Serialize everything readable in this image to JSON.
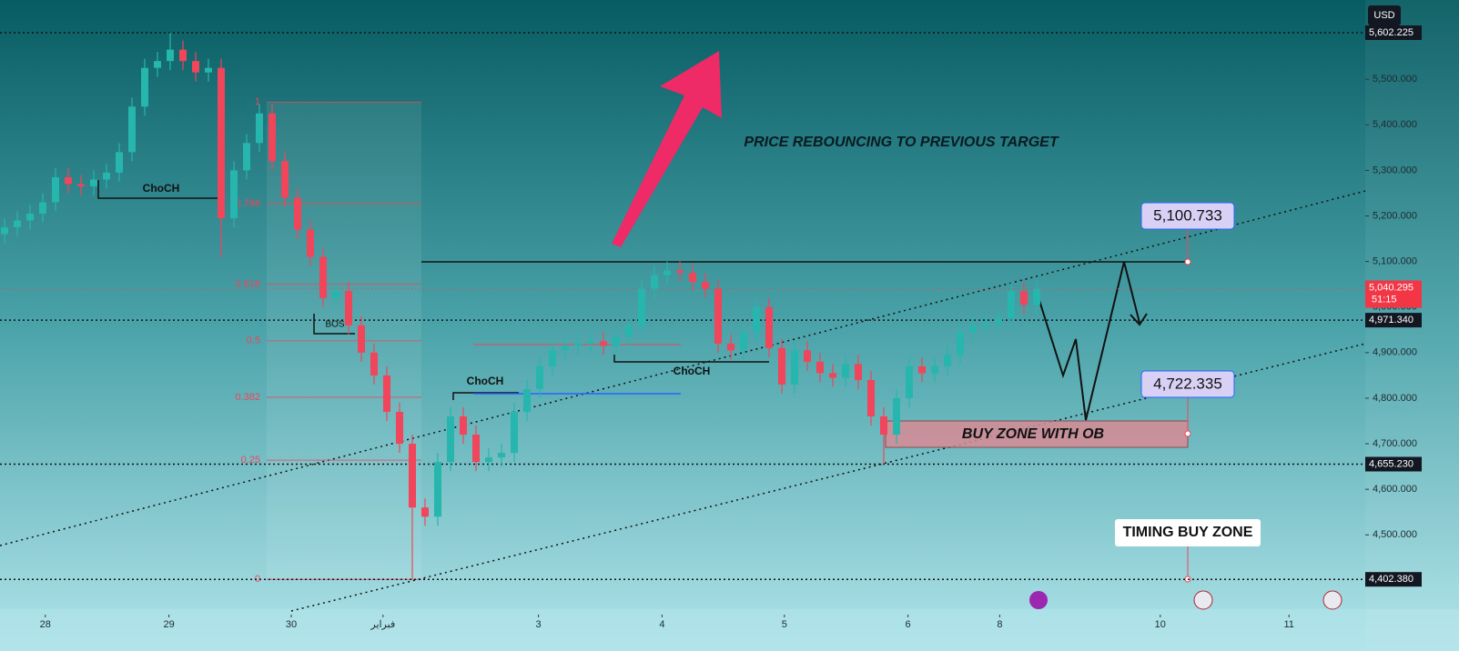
{
  "chart_data": {
    "type": "candlestick",
    "currency": "USD",
    "annotation": "PRICE REBOUNCING TO PREVIOUS TARGET",
    "buy_zone_label": "BUY ZONE WITH OB",
    "timing_label": "TIMING BUY ZONE",
    "target_labels": [
      "5,100.733",
      "4,722.335"
    ],
    "structure_labels": [
      "ChoCH",
      "ChoCH",
      "ChoCH",
      "BOS"
    ],
    "up_color": "#26b6ad",
    "down_color": "#f0455a",
    "xlim": [
      -0.357,
      106.786
    ],
    "ylim": [
      4297,
      5674
    ],
    "xticks": [
      {
        "value": 3.2,
        "label": "28"
      },
      {
        "value": 12.9,
        "label": "29"
      },
      {
        "value": 22.5,
        "label": "30"
      },
      {
        "value": 29.7,
        "label": "فبراير"
      },
      {
        "value": 41.9,
        "label": "3"
      },
      {
        "value": 51.6,
        "label": "4"
      },
      {
        "value": 61.2,
        "label": "5"
      },
      {
        "value": 70.9,
        "label": "6"
      },
      {
        "value": 78.1,
        "label": "8"
      },
      {
        "value": 90.7,
        "label": "10"
      },
      {
        "value": 100.8,
        "label": "11"
      }
    ],
    "yticks": [
      {
        "value": 4500,
        "label": "4,500.000"
      },
      {
        "value": 4600,
        "label": "4,600.000"
      },
      {
        "value": 4700,
        "label": "4,700.000"
      },
      {
        "value": 4800,
        "label": "4,800.000"
      },
      {
        "value": 4900,
        "label": "4,900.000"
      },
      {
        "value": 5000,
        "label": "5,000.000"
      },
      {
        "value": 5100,
        "label": "5,100.000"
      },
      {
        "value": 5200,
        "label": "5,200.000"
      },
      {
        "value": 5300,
        "label": "5,300.000"
      },
      {
        "value": 5400,
        "label": "5,400.000"
      },
      {
        "value": 5500,
        "label": "5,500.000"
      }
    ],
    "levels": [
      {
        "value": 5602.225,
        "label": "5,602.225"
      },
      {
        "value": 4971.34,
        "label": "4,971.340"
      },
      {
        "value": 4655.23,
        "label": "4,655.230"
      },
      {
        "value": 4402.38,
        "label": "4,402.380"
      }
    ],
    "current_price": {
      "value": 5040.295,
      "label": "5,040.295",
      "countdown": "51:15"
    },
    "fib": [
      {
        "label": "1",
        "value": 5450
      },
      {
        "label": "0.786",
        "value": 5227
      },
      {
        "label": "0.618",
        "value": 5050
      },
      {
        "label": "0.5",
        "value": 4926
      },
      {
        "label": "0.382",
        "value": 4802
      },
      {
        "label": "0.25",
        "value": 4664
      },
      {
        "label": "0",
        "value": 4402.38
      }
    ],
    "open": [
      5160,
      5175,
      5190,
      5205,
      5230,
      5285,
      5270,
      5265,
      5280,
      5295,
      5340,
      5440,
      5525,
      5540,
      5565,
      5540,
      5515,
      5525,
      5195,
      5300,
      5360,
      5425,
      5320,
      5240,
      5170,
      5110,
      5020,
      5035,
      4960,
      4900,
      4850,
      4770,
      4700,
      4560,
      4540,
      4660,
      4760,
      4720,
      4660,
      4670,
      4680,
      4770,
      4820,
      4870,
      4905,
      4915,
      4920,
      4925,
      4915,
      4935,
      4960,
      5040,
      5070,
      5080,
      5075,
      5055,
      5040,
      4920,
      4905,
      4945,
      5000,
      4910,
      4830,
      4905,
      4880,
      4855,
      4845,
      4875,
      4840,
      4760,
      4720,
      4800,
      4870,
      4855,
      4870,
      4895,
      4945,
      4960,
      4965,
      4975,
      5035,
      5005
    ],
    "high": [
      5195,
      5210,
      5225,
      5250,
      5305,
      5305,
      5290,
      5300,
      5315,
      5360,
      5460,
      5545,
      5560,
      5602,
      5585,
      5560,
      5545,
      5545,
      5320,
      5380,
      5445,
      5445,
      5340,
      5260,
      5190,
      5130,
      5055,
      5055,
      4980,
      4920,
      4870,
      4790,
      4720,
      4580,
      4680,
      4780,
      4780,
      4740,
      4690,
      4700,
      4790,
      4840,
      4890,
      4925,
      4935,
      4940,
      4945,
      4945,
      4955,
      4980,
      5060,
      5090,
      5100,
      5100,
      5095,
      5075,
      5060,
      4940,
      4965,
      5020,
      5020,
      4930,
      4925,
      4925,
      4900,
      4875,
      4895,
      4895,
      4860,
      4780,
      4820,
      4890,
      4890,
      4890,
      4915,
      4965,
      4980,
      4985,
      4995,
      5055,
      5055,
      5060
    ],
    "low": [
      5140,
      5155,
      5170,
      5185,
      5210,
      5250,
      5245,
      5245,
      5260,
      5275,
      5320,
      5420,
      5505,
      5520,
      5520,
      5495,
      5495,
      5110,
      5175,
      5280,
      5340,
      5300,
      5220,
      5150,
      5090,
      5000,
      5000,
      4940,
      4880,
      4830,
      4750,
      4680,
      4402.38,
      4520,
      4520,
      4640,
      4700,
      4640,
      4640,
      4650,
      4660,
      4750,
      4800,
      4850,
      4885,
      4895,
      4900,
      4895,
      4895,
      4915,
      4940,
      5020,
      5050,
      5055,
      5035,
      5020,
      4900,
      4885,
      4885,
      4925,
      4890,
      4810,
      4810,
      4860,
      4835,
      4825,
      4825,
      4820,
      4740,
      4655.23,
      4700,
      4780,
      4835,
      4835,
      4850,
      4875,
      4925,
      4940,
      4945,
      4955,
      4985,
      4985
    ],
    "close": [
      5175,
      5190,
      5205,
      5230,
      5285,
      5270,
      5265,
      5280,
      5295,
      5340,
      5440,
      5525,
      5540,
      5565,
      5540,
      5515,
      5525,
      5195,
      5300,
      5360,
      5425,
      5320,
      5240,
      5170,
      5110,
      5020,
      5035,
      4960,
      4900,
      4850,
      4770,
      4700,
      4560,
      4540,
      4660,
      4760,
      4720,
      4660,
      4670,
      4680,
      4770,
      4820,
      4870,
      4905,
      4915,
      4920,
      4925,
      4915,
      4935,
      4960,
      5040,
      5070,
      5080,
      5075,
      5055,
      5040,
      4920,
      4905,
      4945,
      5000,
      4910,
      4830,
      4905,
      4880,
      4855,
      4845,
      4875,
      4840,
      4760,
      4720,
      4800,
      4870,
      4855,
      4870,
      4895,
      4945,
      4960,
      4965,
      4975,
      5035,
      5005,
      5040
    ]
  }
}
